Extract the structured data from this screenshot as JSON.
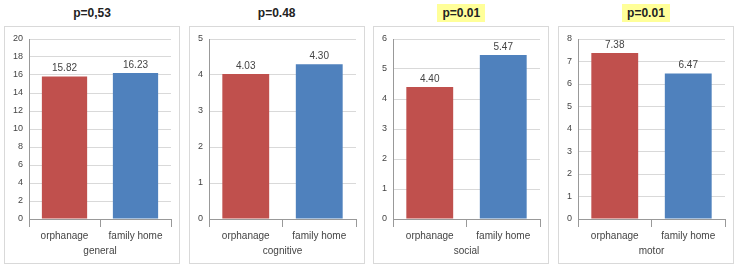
{
  "chart_data": [
    {
      "type": "bar",
      "title": "p=0,53",
      "categories": [
        "orphanage",
        "family home"
      ],
      "values": [
        15.82,
        16.23
      ],
      "colors": [
        "#c0504d",
        "#4f81bd"
      ],
      "x_label": "general",
      "ylim": [
        0,
        20
      ],
      "yticks": [
        0,
        2,
        4,
        6,
        8,
        10,
        12,
        14,
        16,
        18,
        20
      ],
      "grid": true,
      "data_labels": true
    },
    {
      "type": "bar",
      "title": "p=0.48",
      "categories": [
        "orphanage",
        "family home"
      ],
      "values": [
        4.03,
        4.3
      ],
      "value_labels": [
        "4.03",
        "4.30"
      ],
      "colors": [
        "#c0504d",
        "#4f81bd"
      ],
      "x_label": "cognitive",
      "ylim": [
        0,
        5
      ],
      "yticks": [
        0,
        1,
        2,
        3,
        4,
        5
      ],
      "grid": true,
      "data_labels": true
    },
    {
      "type": "bar",
      "title": "p=0.01",
      "categories": [
        "orphanage",
        "family home"
      ],
      "values": [
        4.4,
        5.47
      ],
      "value_labels": [
        "4.40",
        "5.47"
      ],
      "colors": [
        "#c0504d",
        "#4f81bd"
      ],
      "x_label": "social",
      "ylim": [
        0,
        6
      ],
      "yticks": [
        0,
        1,
        2,
        3,
        4,
        5,
        6
      ],
      "grid": true,
      "data_labels": true
    },
    {
      "type": "bar",
      "title": "p=0.01",
      "categories": [
        "orphanage",
        "family home"
      ],
      "values": [
        7.38,
        6.47
      ],
      "colors": [
        "#c0504d",
        "#4f81bd"
      ],
      "x_label": "motor",
      "ylim": [
        0,
        8
      ],
      "yticks": [
        0,
        1,
        2,
        3,
        4,
        5,
        6,
        7,
        8
      ],
      "grid": true,
      "data_labels": true
    }
  ]
}
